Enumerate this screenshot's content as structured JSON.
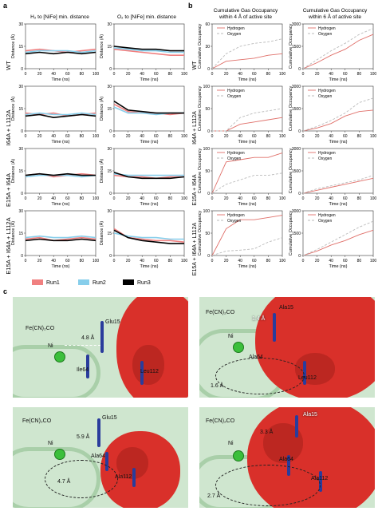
{
  "panel_labels": {
    "a": "a",
    "b": "b",
    "c": "c"
  },
  "panel_a": {
    "col_titles": [
      "H₂ to [NiFe] min. distance",
      "O₂ to [NiFe] min. distance"
    ],
    "rows": [
      "WT",
      "I64A + L112A",
      "E15A + I64A",
      "E15A + I64A + L112A"
    ],
    "xlabel": "Time (ns)",
    "ylabel": "Distance (Å)",
    "legend": [
      {
        "label": "Run1",
        "color": "#f08080"
      },
      {
        "label": "Run2",
        "color": "#87ceeb"
      },
      {
        "label": "Run3",
        "color": "#000000"
      }
    ]
  },
  "panel_b": {
    "col_titles": [
      "Cumulative Gas Occupancy within 4 Å of active site",
      "Cumulative Gas Occupancy within 6 Å of active site"
    ],
    "xlabel": "Time (ns)",
    "ylabel": "Cumulative Occupancy",
    "legend": [
      {
        "label": "Hydrogen",
        "style": "solid"
      },
      {
        "label": "Oxygen",
        "style": "dashed"
      }
    ]
  },
  "chart_data": [
    {
      "type": "line",
      "title": "H₂ to [NiFe] min. distance",
      "row": "WT",
      "xlabel": "Time (ns)",
      "ylabel": "Distance (Å)",
      "x": [
        0,
        20,
        40,
        60,
        80,
        100
      ],
      "ylim": [
        0,
        30
      ],
      "series": [
        {
          "name": "Run1",
          "values": [
            12,
            13,
            12,
            11,
            12,
            13
          ]
        },
        {
          "name": "Run2",
          "values": [
            11,
            12,
            12,
            12,
            11,
            12
          ]
        },
        {
          "name": "Run3",
          "values": [
            10,
            11,
            10,
            11,
            10,
            11
          ]
        }
      ]
    },
    {
      "type": "line",
      "title": "O₂ to [NiFe] min. distance",
      "row": "WT",
      "xlabel": "Time (ns)",
      "ylabel": "Distance (Å)",
      "x": [
        0,
        20,
        40,
        60,
        80,
        100
      ],
      "ylim": [
        0,
        30
      ],
      "series": [
        {
          "name": "Run1",
          "values": [
            13,
            12,
            11,
            10,
            9,
            9
          ]
        },
        {
          "name": "Run2",
          "values": [
            14,
            13,
            12,
            12,
            11,
            11
          ]
        },
        {
          "name": "Run3",
          "values": [
            15,
            14,
            13,
            13,
            12,
            12
          ]
        }
      ]
    },
    {
      "type": "line",
      "title": "H₂ to [NiFe] min. distance",
      "row": "I64A + L112A",
      "xlabel": "Time (ns)",
      "ylabel": "Distance (Å)",
      "x": [
        0,
        20,
        40,
        60,
        80,
        100
      ],
      "ylim": [
        0,
        30
      ],
      "series": [
        {
          "name": "Run1",
          "values": [
            12,
            11,
            12,
            10,
            11,
            12
          ]
        },
        {
          "name": "Run2",
          "values": [
            11,
            12,
            11,
            11,
            12,
            11
          ]
        },
        {
          "name": "Run3",
          "values": [
            10,
            11,
            9,
            10,
            11,
            10
          ]
        }
      ]
    },
    {
      "type": "line",
      "title": "O₂ to [NiFe] min. distance",
      "row": "I64A + L112A",
      "xlabel": "Time (ns)",
      "ylabel": "Distance (Å)",
      "x": [
        0,
        20,
        40,
        60,
        80,
        100
      ],
      "ylim": [
        0,
        30
      ],
      "series": [
        {
          "name": "Run1",
          "values": [
            18,
            13,
            12,
            12,
            11,
            12
          ]
        },
        {
          "name": "Run2",
          "values": [
            16,
            12,
            12,
            11,
            12,
            12
          ]
        },
        {
          "name": "Run3",
          "values": [
            20,
            14,
            13,
            12,
            12,
            12
          ]
        }
      ]
    },
    {
      "type": "line",
      "title": "H₂ to [NiFe] min. distance",
      "row": "E15A + I64A",
      "xlabel": "Time (ns)",
      "ylabel": "Distance (Å)",
      "x": [
        0,
        20,
        40,
        60,
        80,
        100
      ],
      "ylim": [
        0,
        30
      ],
      "series": [
        {
          "name": "Run1",
          "values": [
            12,
            13,
            11,
            12,
            13,
            12
          ]
        },
        {
          "name": "Run2",
          "values": [
            11,
            12,
            12,
            12,
            11,
            12
          ]
        },
        {
          "name": "Run3",
          "values": [
            12,
            13,
            12,
            13,
            12,
            12
          ]
        }
      ]
    },
    {
      "type": "line",
      "title": "O₂ to [NiFe] min. distance",
      "row": "E15A + I64A",
      "xlabel": "Time (ns)",
      "ylabel": "Distance (Å)",
      "x": [
        0,
        20,
        40,
        60,
        80,
        100
      ],
      "ylim": [
        0,
        30
      ],
      "series": [
        {
          "name": "Run1",
          "values": [
            12,
            11,
            11,
            10,
            11,
            11
          ]
        },
        {
          "name": "Run2",
          "values": [
            13,
            12,
            12,
            12,
            12,
            12
          ]
        },
        {
          "name": "Run3",
          "values": [
            14,
            11,
            10,
            10,
            10,
            11
          ]
        }
      ]
    },
    {
      "type": "line",
      "title": "H₂ to [NiFe] min. distance",
      "row": "E15A + I64A + L112A",
      "xlabel": "Time (ns)",
      "ylabel": "Distance (Å)",
      "x": [
        0,
        20,
        40,
        60,
        80,
        100
      ],
      "ylim": [
        0,
        30
      ],
      "series": [
        {
          "name": "Run1",
          "values": [
            11,
            12,
            10,
            11,
            12,
            11
          ]
        },
        {
          "name": "Run2",
          "values": [
            12,
            13,
            12,
            12,
            13,
            12
          ]
        },
        {
          "name": "Run3",
          "values": [
            10,
            11,
            10,
            10,
            11,
            10
          ]
        }
      ]
    },
    {
      "type": "line",
      "title": "O₂ to [NiFe] min. distance",
      "row": "E15A + I64A + L112A",
      "xlabel": "Time (ns)",
      "ylabel": "Distance (Å)",
      "x": [
        0,
        20,
        40,
        60,
        80,
        100
      ],
      "ylim": [
        0,
        30
      ],
      "series": [
        {
          "name": "Run1",
          "values": [
            18,
            12,
            11,
            10,
            10,
            9
          ]
        },
        {
          "name": "Run2",
          "values": [
            15,
            13,
            12,
            12,
            11,
            11
          ]
        },
        {
          "name": "Run3",
          "values": [
            17,
            12,
            10,
            9,
            8,
            8
          ]
        }
      ]
    },
    {
      "type": "line",
      "title": "Cumulative Gas Occupancy within 4 Å of active site",
      "row": "WT",
      "xlabel": "Time (ns)",
      "ylabel": "Cumulative Occupancy",
      "x": [
        0,
        20,
        40,
        60,
        80,
        100
      ],
      "ylim": [
        0,
        60
      ],
      "series": [
        {
          "name": "Hydrogen",
          "values": [
            0,
            10,
            12,
            14,
            18,
            20
          ]
        },
        {
          "name": "Oxygen",
          "values": [
            0,
            20,
            30,
            34,
            36,
            40
          ]
        }
      ]
    },
    {
      "type": "line",
      "title": "Cumulative Gas Occupancy within 6 Å of active site",
      "row": "WT",
      "xlabel": "Time (ns)",
      "ylabel": "Cumulative Occupancy",
      "x": [
        0,
        20,
        40,
        60,
        80,
        100
      ],
      "ylim": [
        0,
        3000
      ],
      "series": [
        {
          "name": "Hydrogen",
          "values": [
            0,
            400,
            900,
            1300,
            1900,
            2300
          ]
        },
        {
          "name": "Oxygen",
          "values": [
            0,
            600,
            1200,
            1700,
            2300,
            2700
          ]
        }
      ]
    },
    {
      "type": "line",
      "title": "Cumulative Gas Occupancy within 4 Å of active site",
      "row": "I64A + L112A",
      "xlabel": "Time (ns)",
      "ylabel": "Cumulative Occupancy",
      "x": [
        0,
        20,
        40,
        60,
        80,
        100
      ],
      "ylim": [
        0,
        100
      ],
      "series": [
        {
          "name": "Hydrogen",
          "values": [
            0,
            0,
            15,
            20,
            25,
            30
          ]
        },
        {
          "name": "Oxygen",
          "values": [
            0,
            0,
            30,
            40,
            45,
            50
          ]
        }
      ]
    },
    {
      "type": "line",
      "title": "Cumulative Gas Occupancy within 6 Å of active site",
      "row": "I64A + L112A",
      "xlabel": "Time (ns)",
      "ylabel": "Cumulative Occupancy",
      "x": [
        0,
        20,
        40,
        60,
        80,
        100
      ],
      "ylim": [
        0,
        3000
      ],
      "series": [
        {
          "name": "Hydrogen",
          "values": [
            0,
            200,
            500,
            1000,
            1300,
            1400
          ]
        },
        {
          "name": "Oxygen",
          "values": [
            0,
            300,
            700,
            1200,
            1900,
            2200
          ]
        }
      ]
    },
    {
      "type": "line",
      "title": "Cumulative Gas Occupancy within 4 Å of active site",
      "row": "E15A + I64A",
      "xlabel": "Time (ns)",
      "ylabel": "Cumulative Occupancy",
      "x": [
        0,
        20,
        40,
        60,
        80,
        100
      ],
      "ylim": [
        0,
        100
      ],
      "series": [
        {
          "name": "Hydrogen",
          "values": [
            0,
            70,
            75,
            80,
            80,
            90
          ]
        },
        {
          "name": "Oxygen",
          "values": [
            0,
            20,
            30,
            40,
            40,
            45
          ]
        }
      ]
    },
    {
      "type": "line",
      "title": "Cumulative Gas Occupancy within 6 Å of active site",
      "row": "E15A + I64A",
      "xlabel": "Time (ns)",
      "ylabel": "Cumulative Occupancy",
      "x": [
        0,
        20,
        40,
        60,
        80,
        100
      ],
      "ylim": [
        0,
        3000
      ],
      "series": [
        {
          "name": "Hydrogen",
          "values": [
            0,
            200,
            400,
            600,
            800,
            1000
          ]
        },
        {
          "name": "Oxygen",
          "values": [
            0,
            300,
            500,
            700,
            900,
            1200
          ]
        }
      ]
    },
    {
      "type": "line",
      "title": "Cumulative Gas Occupancy within 4 Å of active site",
      "row": "E15A + I64A + L112A",
      "xlabel": "Time (ns)",
      "ylabel": "Cumulative Occupancy",
      "x": [
        0,
        20,
        40,
        60,
        80,
        100
      ],
      "ylim": [
        0,
        100
      ],
      "series": [
        {
          "name": "Hydrogen",
          "values": [
            0,
            60,
            80,
            80,
            85,
            90
          ]
        },
        {
          "name": "Oxygen",
          "values": [
            0,
            10,
            12,
            15,
            30,
            40
          ]
        }
      ]
    },
    {
      "type": "line",
      "title": "Cumulative Gas Occupancy within 6 Å of active site",
      "row": "E15A + I64A + L112A",
      "xlabel": "Time (ns)",
      "ylabel": "Cumulative Occupancy",
      "x": [
        0,
        20,
        40,
        60,
        80,
        100
      ],
      "ylim": [
        0,
        3000
      ],
      "series": [
        {
          "name": "Hydrogen",
          "values": [
            0,
            300,
            700,
            1000,
            1400,
            1700
          ]
        },
        {
          "name": "Oxygen",
          "values": [
            0,
            400,
            900,
            1400,
            1900,
            2300
          ]
        }
      ]
    }
  ],
  "panel_c": {
    "structures": [
      {
        "row": "WT",
        "labels": {
          "fe": "Fe(CN)₂CO",
          "ni": "Ni",
          "glu": "Glu15",
          "d1": "4.8 Å",
          "ile": "Ile64",
          "leu": "Leu112"
        }
      },
      {
        "row": "E15A + I64A",
        "labels": {
          "fe": "Fe(CN)₂CO",
          "ni": "Ni",
          "ala15": "Ala15",
          "d1": "1.4 Å",
          "ala64": "Ala64",
          "leu": "Leu112",
          "d2": "1.6 Å"
        }
      },
      {
        "row": "I64A + L112A",
        "labels": {
          "fe": "Fe(CN)₂CO",
          "ni": "Ni",
          "glu": "Glu15",
          "d1": "5.9 Å",
          "ala64": "Ala64",
          "ala112": "Ala112",
          "d2": "4.7 Å"
        }
      },
      {
        "row": "E15A + I64A + L112A",
        "labels": {
          "fe": "Fe(CN)₂CO",
          "ni": "Ni",
          "ala15": "Ala15",
          "d1": "3.3 Å",
          "ala64": "Ala64",
          "ala112": "Ala112",
          "d2": "2.7 Å"
        }
      }
    ]
  }
}
